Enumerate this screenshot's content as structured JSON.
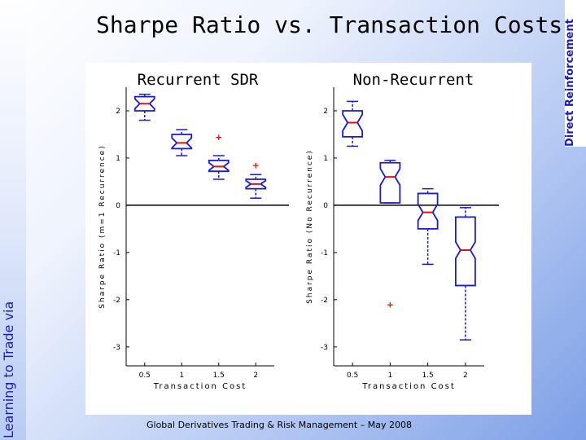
{
  "slide": {
    "title": "Sharpe Ratio vs. Transaction Costs",
    "left_label": "Learning to Trade via",
    "right_label": "Direct Reinforcement",
    "footer": "Global Derivatives Trading & Risk Management – May 2008"
  },
  "chart_data": [
    {
      "type": "box",
      "title": "Recurrent SDR",
      "xlabel": "Transaction Cost",
      "ylabel": "Sharpe Ratio (m=1 Recurrence)",
      "categories": [
        "0.5",
        "1",
        "1.5",
        "2"
      ],
      "ylim": [
        -3.4,
        2.5
      ],
      "yticks": [
        -3,
        -2,
        -1,
        0,
        1,
        2
      ],
      "boxes": [
        {
          "x": "0.5",
          "min": 1.8,
          "q1": 2.0,
          "median": 2.15,
          "q3": 2.3,
          "max": 2.35,
          "outliers": []
        },
        {
          "x": "1",
          "min": 1.05,
          "q1": 1.2,
          "median": 1.32,
          "q3": 1.5,
          "max": 1.6,
          "outliers": []
        },
        {
          "x": "1.5",
          "min": 0.55,
          "q1": 0.72,
          "median": 0.82,
          "q3": 0.95,
          "max": 1.05,
          "outliers": [
            1.45
          ]
        },
        {
          "x": "2",
          "min": 0.15,
          "q1": 0.35,
          "median": 0.45,
          "q3": 0.55,
          "max": 0.65,
          "outliers": [
            0.85
          ]
        }
      ]
    },
    {
      "type": "box",
      "title": "Non-Recurrent",
      "xlabel": "Transaction Cost",
      "ylabel": "Sharpe Ratio (No Recurrence)",
      "categories": [
        "0.5",
        "1",
        "1.5",
        "2"
      ],
      "ylim": [
        -3.4,
        2.5
      ],
      "yticks": [
        -3,
        -2,
        -1,
        0,
        1,
        2
      ],
      "boxes": [
        {
          "x": "0.5",
          "min": 1.25,
          "q1": 1.45,
          "median": 1.75,
          "q3": 2.0,
          "max": 2.2,
          "outliers": []
        },
        {
          "x": "1",
          "min": 0.05,
          "q1": 0.05,
          "median": 0.6,
          "q3": 0.9,
          "max": 0.95,
          "outliers": [
            -2.1
          ]
        },
        {
          "x": "1.5",
          "min": -1.25,
          "q1": -0.5,
          "median": -0.15,
          "q3": 0.25,
          "max": 0.35,
          "outliers": []
        },
        {
          "x": "2",
          "min": -2.85,
          "q1": -1.7,
          "median": -0.95,
          "q3": -0.25,
          "max": -0.05,
          "outliers": []
        }
      ]
    }
  ]
}
